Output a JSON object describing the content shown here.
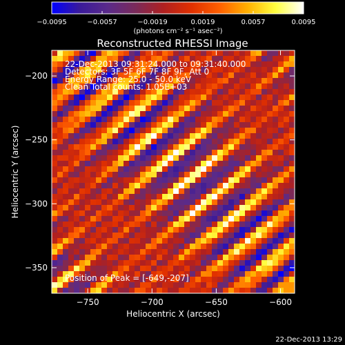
{
  "chart_data": {
    "type": "heatmap",
    "title": "Reconstructed RHESSI Image",
    "xlabel": "Heliocentric X (arcsec)",
    "ylabel": "Heliocentric Y (arcsec)",
    "xlim": [
      -778,
      -589
    ],
    "ylim": [
      -370,
      -180
    ],
    "x_ticks": [
      -750,
      -700,
      -650,
      -600
    ],
    "y_ticks": [
      -350,
      -300,
      -250,
      -200
    ],
    "x_tick_labels": [
      "−750",
      "−700",
      "−650",
      "−600"
    ],
    "y_tick_labels": [
      "−350",
      "−300",
      "−250",
      "−200"
    ],
    "colorbar": {
      "vmin": -0.0095,
      "vmax": 0.0095,
      "ticks": [
        -0.0095,
        -0.0057,
        -0.0019,
        0.0019,
        0.0057,
        0.0095
      ],
      "tick_labels": [
        "−0.0095",
        "−0.0057",
        "−0.0019",
        "0.0019",
        "0.0057",
        "0.0095"
      ],
      "units_label": "(photons cm⁻² s⁻¹ asec⁻²)",
      "colormap": [
        "#0000ff",
        "#3a1a9a",
        "#5a2a8a",
        "#7a2a5a",
        "#b02020",
        "#e03000",
        "#ff6000",
        "#ffb000",
        "#ffff40",
        "#ffffff"
      ]
    },
    "info_lines": [
      "22-Dec-2013 09:31:24.000 to 09:31:40.000",
      "Detectors: 3F 5F 6F 7F 8F 9F, Att 0",
      "Energy Range: 25.0 - 50.0 keV",
      "Clean     Total counts: 1.05E+03"
    ],
    "peak_label": "Position of Peak = [-649,-207]",
    "peak_position": [
      -649,
      -207
    ]
  },
  "footer": {
    "timestamp": "22-Dec-2013 13:29"
  }
}
